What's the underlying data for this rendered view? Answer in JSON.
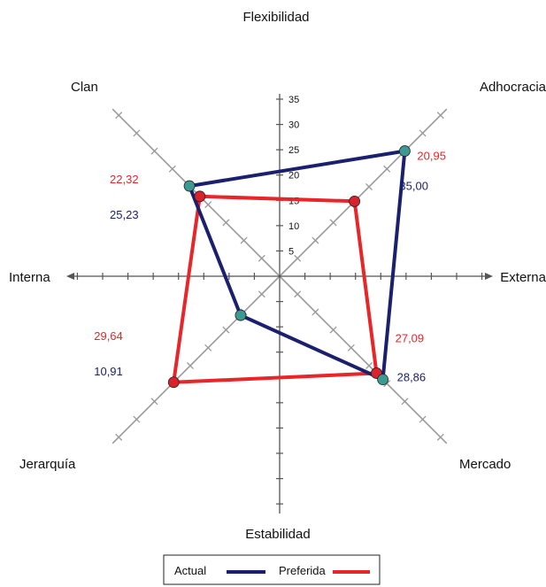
{
  "chart_data": {
    "type": "radar",
    "axis_titles": {
      "top": "Flexibilidad",
      "bottom": "Estabilidad",
      "left": "Interna",
      "right": "Externa"
    },
    "categories": [
      "Clan",
      "Adhocracia",
      "Mercado",
      "Jerarquía"
    ],
    "tick_labels": [
      "5",
      "10",
      "15",
      "20",
      "25",
      "30",
      "35"
    ],
    "rmax": 35,
    "series": [
      {
        "name": "Actual",
        "color": "#1a1f6e",
        "values": [
          25.23,
          35.0,
          28.86,
          10.91
        ],
        "labels": [
          "25,23",
          "35,00",
          "28,86",
          "10,91"
        ]
      },
      {
        "name": "Preferida",
        "color": "#e8262a",
        "values": [
          22.32,
          20.95,
          27.09,
          29.64
        ],
        "labels": [
          "22,32",
          "20,95",
          "27,09",
          "29,64"
        ]
      }
    ],
    "legend": {
      "position": "bottom"
    }
  }
}
